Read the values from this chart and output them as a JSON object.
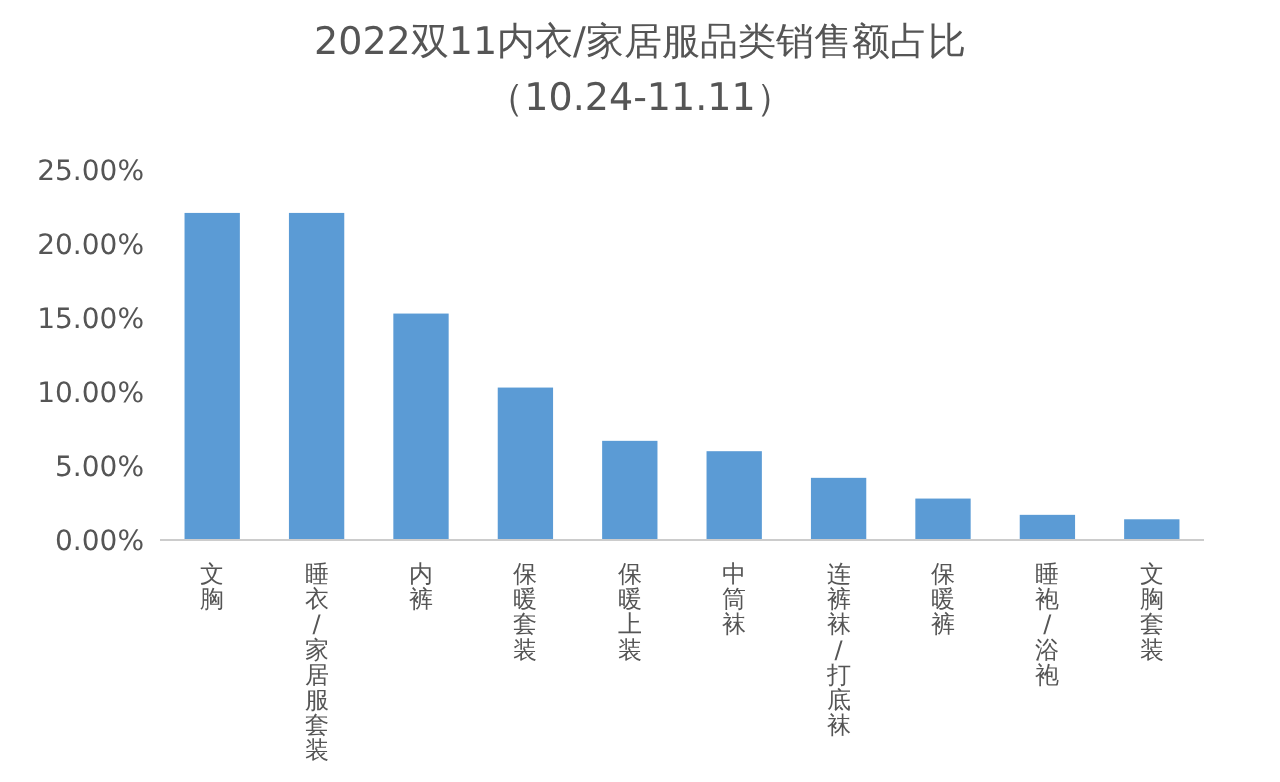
{
  "chart_data": {
    "type": "bar",
    "title": "2022双11内衣/家居服品类销售额占比",
    "subtitle": "（10.24-11.11）",
    "categories": [
      "文胸",
      "睡衣/家居服套装",
      "内裤",
      "保暖套装",
      "保暖上装",
      "中筒袜",
      "连裤袜/打底袜",
      "保暖裤",
      "睡袍/浴袍",
      "文胸套装"
    ],
    "values": [
      22.1,
      22.1,
      15.3,
      10.3,
      6.7,
      6.0,
      4.2,
      2.8,
      1.7,
      1.4
    ],
    "color": "#5b9bd5",
    "ylim": [
      0,
      25
    ],
    "yticks": [
      {
        "value": 0,
        "label": "0.00%"
      },
      {
        "value": 5,
        "label": "5.00%"
      },
      {
        "value": 10,
        "label": "10.00%"
      },
      {
        "value": 15,
        "label": "15.00%"
      },
      {
        "value": 20,
        "label": "20.00%"
      },
      {
        "value": 25,
        "label": "25.00%"
      }
    ],
    "grid": false
  }
}
